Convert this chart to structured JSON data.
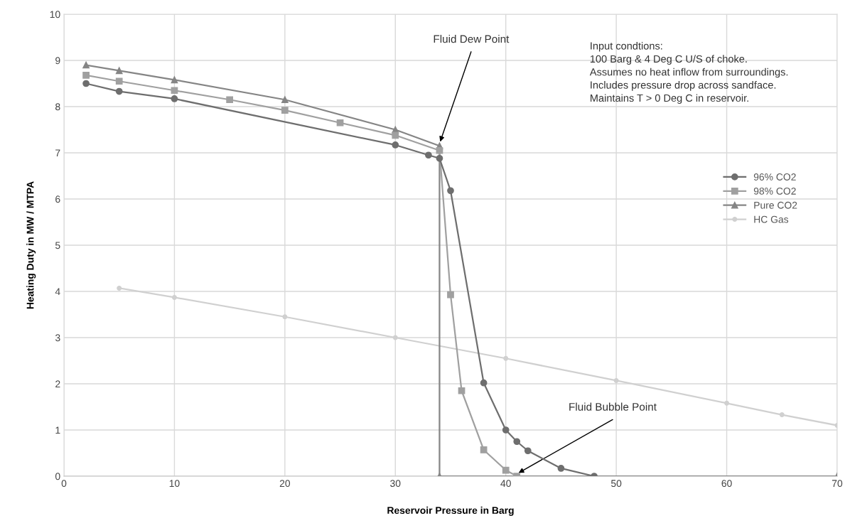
{
  "chart_data": {
    "type": "line",
    "xlabel": "Reservoir Pressure in Barg",
    "ylabel": "Heating Duty in MW / MTPA",
    "xlim": [
      0,
      70
    ],
    "xticks": [
      0,
      10,
      20,
      30,
      40,
      50,
      60,
      70
    ],
    "ylim": [
      0,
      10
    ],
    "yticks": [
      0,
      1,
      2,
      3,
      4,
      5,
      6,
      7,
      8,
      9,
      10
    ],
    "grid": true,
    "legend": "right",
    "series": [
      {
        "name": "96% CO2",
        "color": "#6e6e6e",
        "marker": "circle",
        "x": [
          2,
          5,
          10,
          30,
          33,
          34,
          35,
          38,
          40,
          41,
          42,
          45,
          48
        ],
        "values": [
          8.5,
          8.33,
          8.17,
          7.17,
          6.95,
          6.88,
          6.18,
          2.02,
          1.0,
          0.75,
          0.55,
          0.17,
          0.0
        ]
      },
      {
        "name": "98% CO2",
        "color": "#a0a0a0",
        "marker": "square",
        "x": [
          2,
          5,
          10,
          15,
          20,
          25,
          30,
          34,
          35,
          36,
          38,
          40,
          41
        ],
        "values": [
          8.68,
          8.55,
          8.35,
          8.15,
          7.92,
          7.65,
          7.38,
          7.05,
          3.93,
          1.85,
          0.57,
          0.13,
          0.0
        ]
      },
      {
        "name": "Pure CO2",
        "color": "#858585",
        "marker": "triangle",
        "x": [
          2,
          5,
          10,
          20,
          30,
          34,
          34,
          70
        ],
        "values": [
          8.9,
          8.78,
          8.58,
          8.15,
          7.5,
          7.15,
          0.0,
          0.0
        ]
      },
      {
        "name": "HC Gas",
        "color": "#d0d0d0",
        "marker": "circle",
        "x": [
          5,
          10,
          20,
          30,
          40,
          50,
          60,
          65,
          70
        ],
        "values": [
          4.07,
          3.87,
          3.45,
          3.0,
          2.55,
          2.07,
          1.58,
          1.33,
          1.1
        ]
      }
    ],
    "annotations": [
      {
        "text": "Fluid Dew Point",
        "x": 34,
        "y": 7.2
      },
      {
        "text": "Fluid Bubble Point",
        "x": 41,
        "y": 0.05
      },
      "Input condtions:\n100 Barg & 4 Deg C U/S of choke.\nAssumes no heat inflow from surroundings.\nIncludes pressure drop across sandface.\nMaintains T > 0 Deg C in reservoir."
    ]
  }
}
